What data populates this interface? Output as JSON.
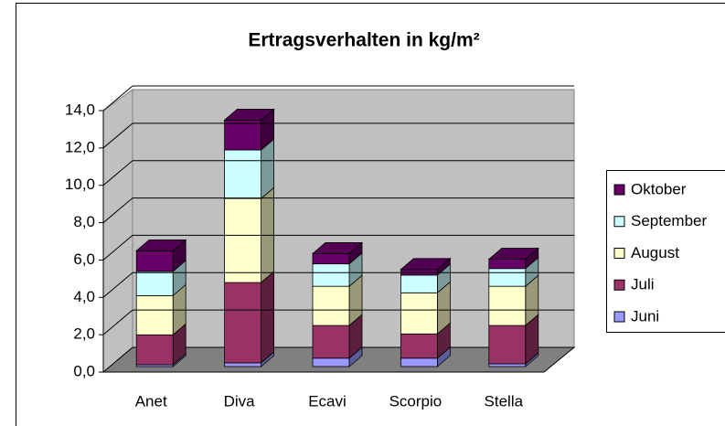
{
  "chart_data": {
    "type": "bar3d_stacked",
    "title": "Ertragsverhalten in kg/m²",
    "categories": [
      "Anet",
      "Diva",
      "Ecavi",
      "Scorpio",
      "Stella"
    ],
    "series": [
      {
        "name": "Juni",
        "color": "#9999FF",
        "values": [
          0.1,
          0.2,
          0.45,
          0.45,
          0.15
        ]
      },
      {
        "name": "Juli",
        "color": "#993366",
        "values": [
          1.6,
          4.3,
          1.75,
          1.3,
          2.05
        ]
      },
      {
        "name": "August",
        "color": "#FFFFCC",
        "values": [
          2.1,
          4.5,
          2.1,
          2.2,
          2.1
        ]
      },
      {
        "name": "September",
        "color": "#CCFFFF",
        "values": [
          1.3,
          2.6,
          1.2,
          0.95,
          0.95
        ]
      },
      {
        "name": "Oktober",
        "color": "#660066",
        "values": [
          1.1,
          1.6,
          0.55,
          0.3,
          0.5
        ]
      }
    ],
    "ylim": [
      0,
      14
    ],
    "yticks": [
      {
        "value": 0,
        "label": "0,0"
      },
      {
        "value": 2,
        "label": "2,0"
      },
      {
        "value": 4,
        "label": "4,0"
      },
      {
        "value": 6,
        "label": "6,0"
      },
      {
        "value": 8,
        "label": "8,0"
      },
      {
        "value": 10,
        "label": "10,0"
      },
      {
        "value": 12,
        "label": "12,0"
      },
      {
        "value": 14,
        "label": "14,0"
      }
    ],
    "grid": true,
    "legend": "right"
  }
}
